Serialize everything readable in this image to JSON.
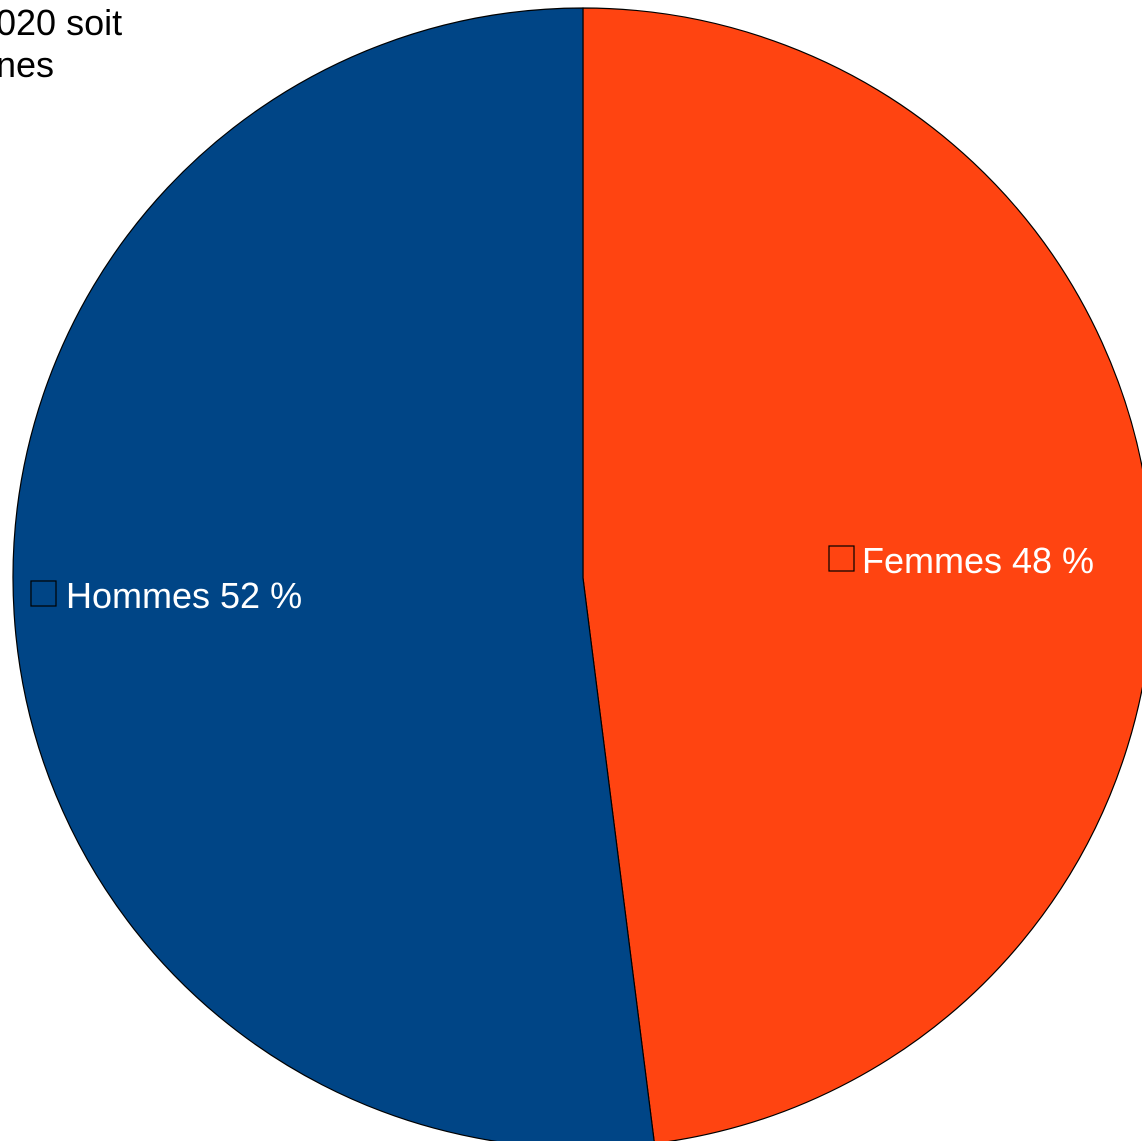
{
  "chart_data": {
    "type": "pie",
    "title_fragment_lines": [
      "020 soit",
      "nes"
    ],
    "slices": [
      {
        "label": "Femmes 48 %",
        "category": "Femmes",
        "value": 48,
        "color": "#ff4411"
      },
      {
        "label": "Hommes 52 %",
        "category": "Hommes",
        "value": 52,
        "color": "#004586"
      }
    ],
    "start_angle": "12 o'clock",
    "direction": "clockwise",
    "labels_inside": true,
    "legend_swatches_in_labels": true
  }
}
